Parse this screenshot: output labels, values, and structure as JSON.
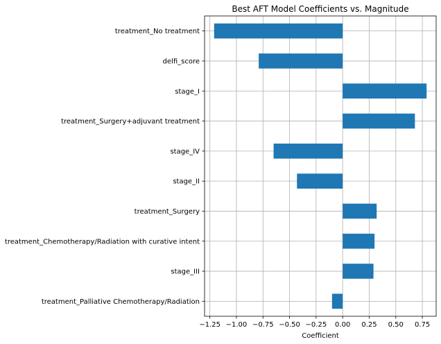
{
  "chart_data": {
    "type": "bar",
    "orientation": "horizontal",
    "title": "Best AFT Model Coefficients vs. Magnitude",
    "xlabel": "Coefficient",
    "ylabel": "",
    "categories": [
      "treatment_No treatment",
      "delfi_score",
      "stage_I",
      "treatment_Surgery+adjuvant treatment",
      "stage_IV",
      "stage_II",
      "treatment_Surgery",
      "treatment_Chemotherapy/Radiation with curative intent",
      "stage_III",
      "treatment_Palliative Chemotherapy/Radiation"
    ],
    "values": [
      -1.21,
      -0.79,
      0.79,
      0.68,
      -0.65,
      -0.43,
      0.32,
      0.3,
      0.29,
      -0.1
    ],
    "xlim": [
      -1.3,
      0.88
    ],
    "xticks": [
      -1.25,
      -1.0,
      -0.75,
      -0.5,
      -0.25,
      0.0,
      0.25,
      0.5,
      0.75
    ],
    "xtick_labels": [
      "−1.25",
      "−1.00",
      "−0.75",
      "−0.50",
      "−0.25",
      "0.00",
      "0.25",
      "0.50",
      "0.75"
    ],
    "grid": true,
    "bar_color": "#1f77b4"
  }
}
